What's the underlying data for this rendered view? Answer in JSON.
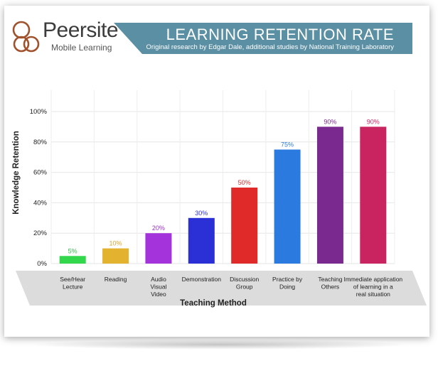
{
  "brand": {
    "name": "Peersite",
    "tagline": "Mobile Learning",
    "color": "#a0522d"
  },
  "banner": {
    "title": "LEARNING RETENTION RATE",
    "subtitle": "Original research by Edgar Dale, additional studies by National Training Laboratory",
    "color": "#5b8fa3"
  },
  "chart_data": {
    "type": "bar",
    "categories": [
      [
        "See/Hear",
        "Lecture"
      ],
      [
        "Reading"
      ],
      [
        "Audio",
        "Visual",
        "Video"
      ],
      [
        "Demonstration"
      ],
      [
        "Discussion",
        "Group"
      ],
      [
        "Practice by",
        "Doing"
      ],
      [
        "Teaching",
        "Others"
      ],
      [
        "Immediate application",
        "of learning in a",
        "real situation"
      ]
    ],
    "values": [
      5,
      10,
      20,
      30,
      50,
      75,
      90,
      90
    ],
    "data_labels": [
      "5%",
      "10%",
      "20%",
      "30%",
      "50%",
      "75%",
      "90%",
      "90%"
    ],
    "colors": [
      "#33d74b",
      "#e3b22e",
      "#a533dc",
      "#2b2fd6",
      "#e02a2a",
      "#2a7ae0",
      "#7a2a8f",
      "#c92460"
    ],
    "label_colors": [
      "#2fbf45",
      "#d9a62a",
      "#9b30d0",
      "#2b2fd6",
      "#e02a2a",
      "#2a7ae0",
      "#7a2a8f",
      "#c92460"
    ],
    "xlabel": "Teaching Method",
    "ylabel": "Knowledge Retention",
    "ylim": [
      0,
      100
    ],
    "yticks": [
      "0%",
      "20%",
      "40%",
      "60%",
      "80%",
      "100%"
    ],
    "grid": true
  }
}
